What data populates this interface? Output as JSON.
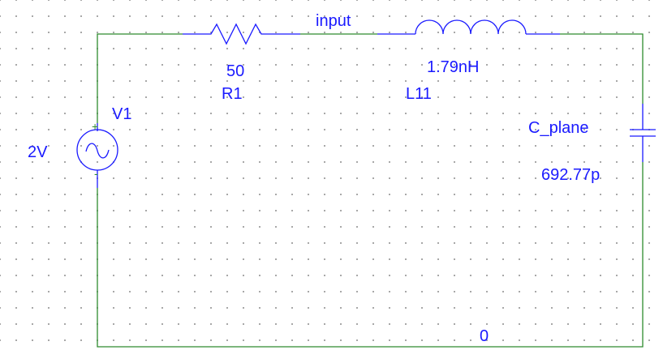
{
  "colors": {
    "wire": "#2e8b2e",
    "component": "#1a1aff",
    "label": "#1a1aff",
    "grid_dot": "#9a9a9a"
  },
  "components": {
    "resistor": {
      "ref": "R1",
      "value": "50",
      "icon": "resistor-icon"
    },
    "inductor": {
      "ref": "L11",
      "value": "1.79nH",
      "icon": "inductor-icon"
    },
    "capacitor": {
      "ref": "C_plane",
      "value": "692.77p",
      "icon": "capacitor-icon"
    },
    "source": {
      "ref": "V1",
      "value": "2V",
      "icon": "ac-voltage-source-icon",
      "plus": "+",
      "minus": "-"
    }
  },
  "nets": {
    "input": "input",
    "ground": "0"
  }
}
